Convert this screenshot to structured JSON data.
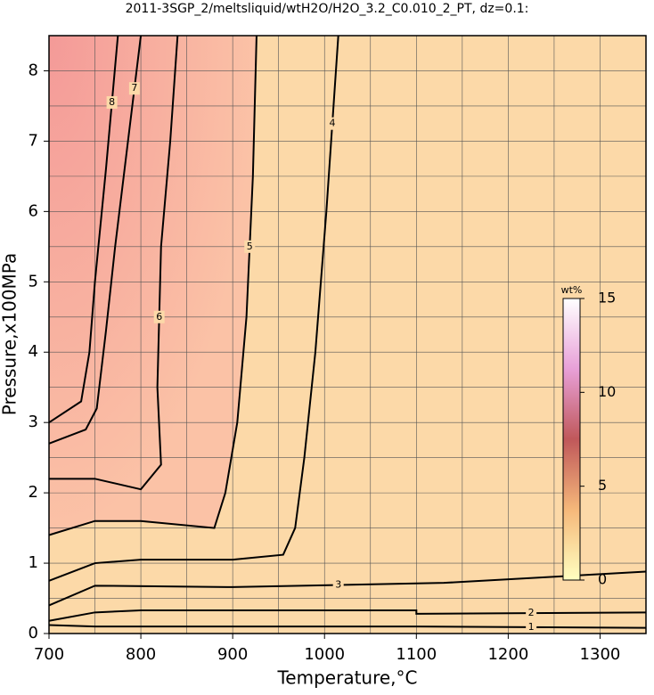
{
  "chart_data": {
    "type": "contour",
    "title": "2011-3SGP_2/meltsliquid/wtH2O/H2O_3.2_C0.010_2_PT, dz=0.1:",
    "xlabel": "Temperature,°C",
    "ylabel": "Pressure,x100MPa",
    "xlim": [
      700,
      1350
    ],
    "ylim": [
      0,
      8.5
    ],
    "xticks": [
      700,
      800,
      900,
      1000,
      1100,
      1200,
      1300
    ],
    "yticks": [
      0,
      1,
      2,
      3,
      4,
      5,
      6,
      7,
      8
    ],
    "xminorticks": [
      750,
      850,
      950,
      1050,
      1150,
      1250
    ],
    "yminorticks": [
      0.5,
      1.5,
      2.5,
      3.5,
      4.5,
      5.5,
      6.5,
      7.5
    ],
    "grid": true,
    "background": "#fcd9a8",
    "line_color": "#000000",
    "series": [
      {
        "name": "1",
        "x": [
          700,
          750,
          950,
          1100,
          1350
        ],
        "values": [
          0.12,
          0.1,
          0.1,
          0.1,
          0.08
        ]
      },
      {
        "name": "2",
        "x": [
          700,
          750,
          800,
          950,
          1100,
          1100,
          1350
        ],
        "values": [
          0.18,
          0.3,
          0.33,
          0.33,
          0.33,
          0.28,
          0.3
        ]
      },
      {
        "name": "3",
        "x": [
          700,
          750,
          900,
          1130,
          1350
        ],
        "values": [
          0.4,
          0.68,
          0.66,
          0.72,
          0.88
        ]
      },
      {
        "name": "4",
        "x": [
          700,
          750,
          800,
          900,
          955,
          968,
          978,
          990,
          1002,
          1015
        ],
        "values": [
          0.75,
          1.0,
          1.05,
          1.05,
          1.12,
          1.5,
          2.5,
          4.0,
          6.0,
          8.5
        ]
      },
      {
        "name": "5",
        "x": [
          700,
          750,
          800,
          880,
          892,
          905,
          915,
          922,
          926
        ],
        "values": [
          1.4,
          1.6,
          1.6,
          1.5,
          2.0,
          3.0,
          4.5,
          6.5,
          8.5
        ]
      },
      {
        "name": "6",
        "x": [
          700,
          750,
          800,
          822,
          818,
          822,
          832,
          840
        ],
        "values": [
          2.2,
          2.2,
          2.05,
          2.4,
          3.5,
          5.5,
          7.0,
          8.5
        ]
      },
      {
        "name": "7",
        "x": [
          700,
          740,
          752,
          762,
          772,
          786,
          800
        ],
        "values": [
          2.7,
          2.9,
          3.2,
          4.3,
          5.5,
          7.0,
          8.5
        ]
      },
      {
        "name": "8",
        "x": [
          700,
          735,
          744,
          750,
          762,
          775
        ],
        "values": [
          3.0,
          3.3,
          4.0,
          5.0,
          6.6,
          8.5
        ]
      }
    ],
    "colorbar": {
      "label": "wt%",
      "lim": [
        0,
        15
      ],
      "ticks": [
        0,
        5,
        10,
        15
      ],
      "colors": [
        "#ffffc0",
        "#f5b87a",
        "#c0585a",
        "#e8a0d8",
        "#ffffff"
      ]
    }
  }
}
